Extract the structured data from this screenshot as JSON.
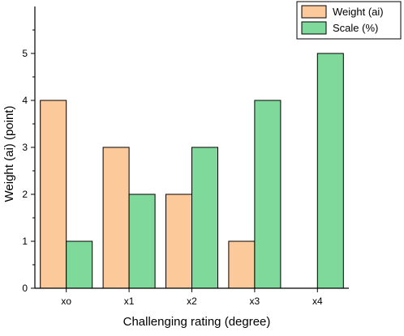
{
  "chart_data": {
    "type": "bar",
    "title": "",
    "xlabel": "Challenging rating (degree)",
    "ylabel": "Weight (ai) (point)",
    "categories": [
      "xo",
      "x1",
      "x2",
      "x3",
      "x4"
    ],
    "ylim": [
      0,
      6
    ],
    "yticks": [
      0,
      1,
      2,
      3,
      4,
      5
    ],
    "grid": false,
    "legend_position": "top-right",
    "series": [
      {
        "name": "Weight (ai)",
        "values": [
          4,
          3,
          2,
          1,
          0
        ],
        "color": "#fcc99b"
      },
      {
        "name": "Scale (%)",
        "values": [
          1,
          2,
          3,
          4,
          5
        ],
        "color": "#7fd99a"
      }
    ]
  }
}
